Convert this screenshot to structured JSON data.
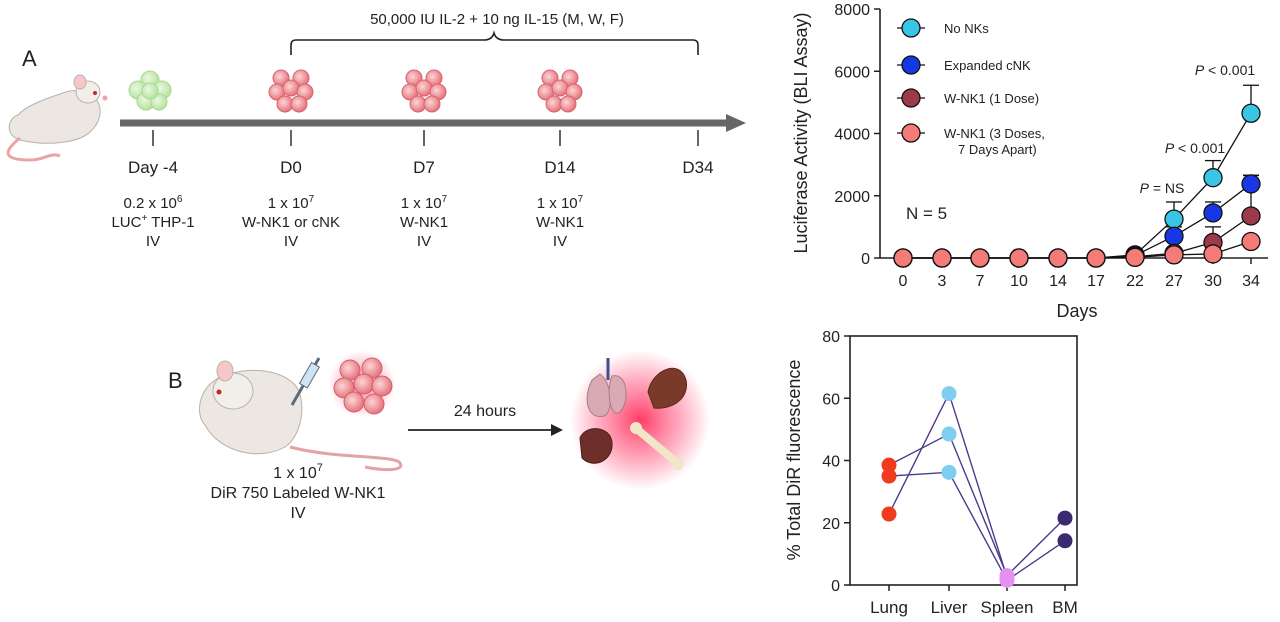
{
  "panel_a": {
    "letter": "A",
    "treatment_label": "50,000 IU IL-2 + 10 ng IL-15  (M, W, F)",
    "timeline": [
      {
        "day": "Day -4",
        "line1": "0.2 x 10",
        "sup1": "6",
        "line2a": "LUC",
        "sup2": "+",
        "line2b": " THP-1",
        "line3": "IV"
      },
      {
        "day": "D0",
        "line1": "1 x 10",
        "sup1": "7",
        "line2": "W-NK1 or cNK",
        "line3": "IV"
      },
      {
        "day": "D7",
        "line1": "1 x 10",
        "sup1": "7",
        "line2": "W-NK1",
        "line3": "IV"
      },
      {
        "day": "D14",
        "line1": "1 x 10",
        "sup1": "7",
        "line2": "W-NK1",
        "line3": "IV"
      },
      {
        "day": "D34"
      }
    ]
  },
  "panel_b": {
    "letter": "B",
    "arrow_label": "24 hours",
    "dose_line1": "1 x 10",
    "dose_sup": "7",
    "dose_line2": "DiR 750 Labeled W-NK1",
    "dose_line3": "IV"
  },
  "chart_data": [
    {
      "type": "line",
      "ylabel": "Luciferase Activity (BLI Assay)",
      "xlabel": "Days",
      "categories": [
        "0",
        "3",
        "7",
        "10",
        "14",
        "17",
        "22",
        "27",
        "30",
        "34"
      ],
      "ylim": [
        0,
        8000
      ],
      "yticks": [
        "0",
        "2000",
        "4000",
        "6000",
        "8000"
      ],
      "annotation": "N = 5",
      "p_labels": [
        {
          "p": "P",
          "rest": " = NS",
          "at": "27"
        },
        {
          "p": "P",
          "rest": " < 0.001",
          "at": "30"
        },
        {
          "p": "P",
          "rest": " < 0.001",
          "at": "34"
        }
      ],
      "legend_placement": "top-left",
      "series": [
        {
          "name": "No NKs",
          "color": "#39c6e6",
          "values": [
            0,
            0,
            0,
            0,
            0,
            0,
            100,
            1250,
            2580,
            4650
          ],
          "errors": [
            0,
            0,
            0,
            0,
            0,
            0,
            80,
            550,
            550,
            900
          ]
        },
        {
          "name": "Expanded cNK",
          "color": "#1737e6",
          "values": [
            0,
            0,
            0,
            0,
            0,
            0,
            80,
            700,
            1450,
            2380
          ],
          "errors": [
            0,
            0,
            0,
            0,
            0,
            0,
            60,
            300,
            350,
            280
          ]
        },
        {
          "name": "W-NK1 (1 Dose)",
          "color": "#9c3a4a",
          "values": [
            0,
            0,
            0,
            0,
            0,
            0,
            40,
            150,
            500,
            1350
          ],
          "errors": [
            0,
            0,
            0,
            0,
            0,
            0,
            30,
            120,
            500,
            1300
          ]
        },
        {
          "name": "W-NK1 (3 Doses,",
          "name2": "7 Days Apart)",
          "color": "#f47b78",
          "values": [
            0,
            0,
            0,
            0,
            0,
            0,
            20,
            100,
            130,
            530
          ],
          "errors": [
            0,
            0,
            0,
            0,
            0,
            0,
            20,
            60,
            80,
            150
          ]
        }
      ]
    },
    {
      "type": "scatter",
      "ylabel": "% Total DiR fluorescence",
      "categories": [
        "Lung",
        "Liver",
        "Spleen",
        "BM"
      ],
      "ylim": [
        0,
        80
      ],
      "yticks": [
        "0",
        "20",
        "40",
        "60",
        "80"
      ],
      "colors": [
        "#f03c1e",
        "#7fcdef",
        "#e391ef",
        "#3a2a70"
      ],
      "line_color": "#4b3a8c",
      "values": [
        [
          38.5,
          61.5,
          3,
          21.5
        ],
        [
          35,
          48.5,
          1.5,
          14.2
        ],
        [
          22.8,
          36.2,
          2.5,
          null
        ]
      ],
      "links": [
        [
          [
            0,
            0
          ],
          [
            1,
            1
          ],
          [
            2,
            0
          ],
          [
            3,
            0
          ]
        ],
        [
          [
            0,
            1
          ],
          [
            1,
            2
          ],
          [
            2,
            1
          ],
          [
            3,
            1
          ]
        ],
        [
          [
            0,
            2
          ],
          [
            1,
            0
          ],
          [
            2,
            2
          ]
        ]
      ]
    }
  ]
}
